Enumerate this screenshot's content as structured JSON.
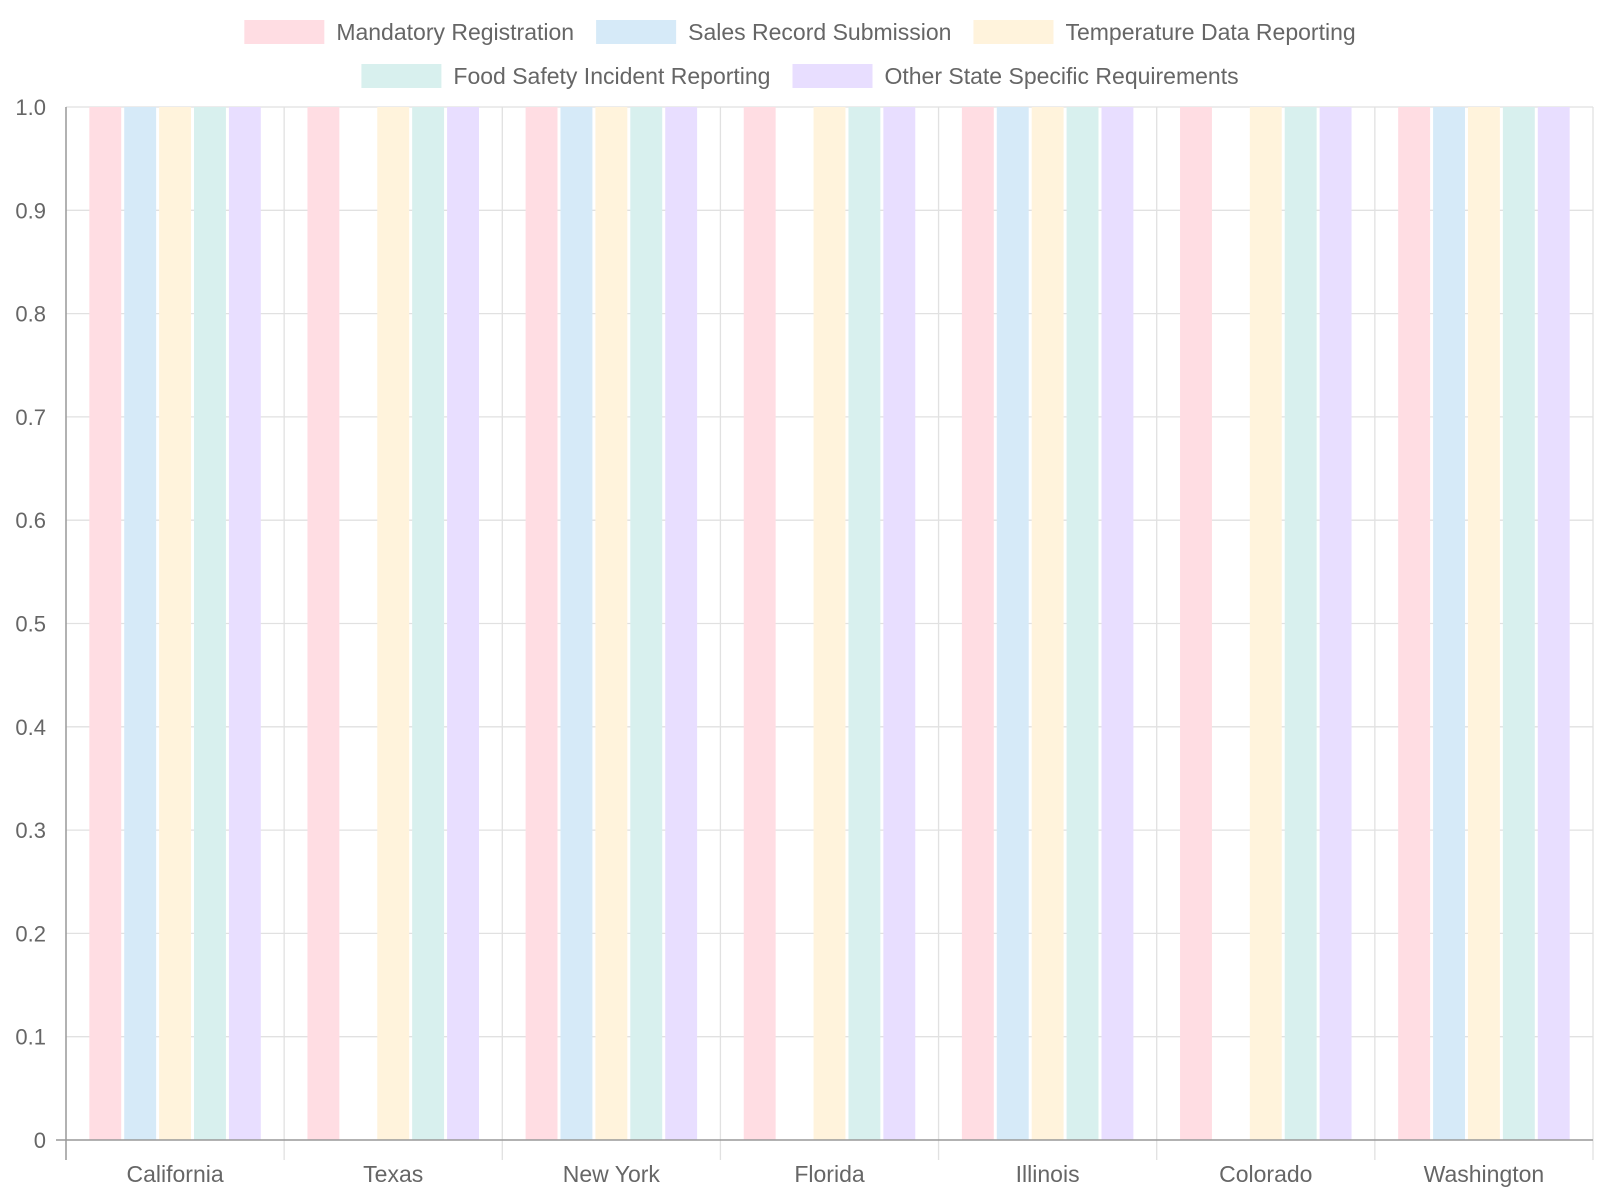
{
  "chart_data": {
    "type": "bar",
    "title": "",
    "xlabel": "",
    "ylabel": "",
    "ylim": [
      0,
      1
    ],
    "yticks": [
      "0",
      "0.1",
      "0.2",
      "0.3",
      "0.4",
      "0.5",
      "0.6",
      "0.7",
      "0.8",
      "0.9",
      "1.0"
    ],
    "grid": true,
    "legend_position": "top",
    "categories": [
      "California",
      "Texas",
      "New York",
      "Florida",
      "Illinois",
      "Colorado",
      "Washington"
    ],
    "series": [
      {
        "name": "Mandatory Registration",
        "color": "#FFDDE3",
        "values": [
          1,
          1,
          1,
          1,
          1,
          1,
          1
        ]
      },
      {
        "name": "Sales Record Submission",
        "color": "#D6EAF8",
        "values": [
          1,
          0,
          1,
          0,
          1,
          0,
          1
        ]
      },
      {
        "name": "Temperature Data Reporting",
        "color": "#FFF3DC",
        "values": [
          1,
          1,
          1,
          1,
          1,
          1,
          1
        ]
      },
      {
        "name": "Food Safety Incident Reporting",
        "color": "#D8F0EE",
        "values": [
          1,
          1,
          1,
          1,
          1,
          1,
          1
        ]
      },
      {
        "name": "Other State Specific Requirements",
        "color": "#E8DEFF",
        "values": [
          1,
          1,
          1,
          1,
          1,
          1,
          1
        ]
      }
    ]
  }
}
